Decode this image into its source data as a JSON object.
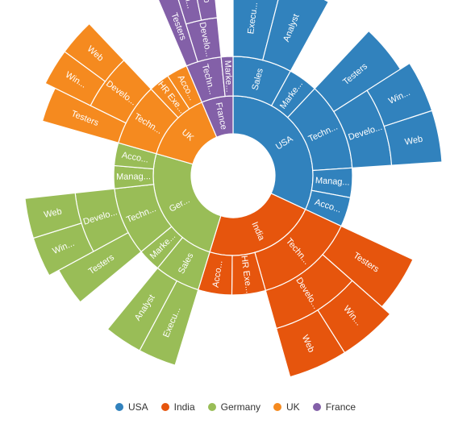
{
  "chart_data": {
    "type": "sunburst",
    "title": "",
    "legend_position": "bottom",
    "legend": [
      {
        "name": "USA",
        "color": "#3182BD"
      },
      {
        "name": "India",
        "color": "#E6550D"
      },
      {
        "name": "Germany",
        "color": "#99BD57"
      },
      {
        "name": "UK",
        "color": "#F58A1F"
      },
      {
        "name": "France",
        "color": "#8360A8"
      }
    ],
    "nodes": [
      {
        "name": "USA",
        "color": "#3182BD",
        "label": "USA",
        "outer_level": 3,
        "children": [
          {
            "name": "Sales",
            "label": "Sales",
            "children": [
              {
                "name": "Executive",
                "label": "Execu..."
              },
              {
                "name": "Analyst",
                "label": "Analyst"
              }
            ]
          },
          {
            "name": "Marketing",
            "label": "Marke..."
          },
          {
            "name": "Technical",
            "label": "Techn...",
            "children": [
              {
                "name": "Testers",
                "label": "Testers"
              },
              {
                "name": "Developers",
                "label": "Develo...",
                "children": [
                  {
                    "name": "Windows",
                    "label": "Win..."
                  },
                  {
                    "name": "Web",
                    "label": "Web"
                  }
                ]
              }
            ]
          },
          {
            "name": "Management",
            "label": "Manag..."
          },
          {
            "name": "Accounts",
            "label": "Acco..."
          }
        ]
      },
      {
        "name": "India",
        "color": "#E6550D",
        "label": "India",
        "outer_level": 3,
        "children": [
          {
            "name": "Technical",
            "label": "Techn...",
            "children": [
              {
                "name": "Testers",
                "label": "Testers"
              },
              {
                "name": "Developers",
                "label": "Develo...",
                "children": [
                  {
                    "name": "Windows",
                    "label": "Win..."
                  },
                  {
                    "name": "Web",
                    "label": "Web"
                  }
                ]
              }
            ]
          },
          {
            "name": "HR Executives",
            "label": "HR Exe..."
          },
          {
            "name": "Accounts",
            "label": "Acco..."
          }
        ]
      },
      {
        "name": "Germany",
        "color": "#99BD57",
        "label": "Ger...",
        "outer_level": 3,
        "children": [
          {
            "name": "Sales",
            "label": "Sales",
            "children": [
              {
                "name": "Executive",
                "label": "Execu..."
              },
              {
                "name": "Analyst",
                "label": "Analyst"
              }
            ]
          },
          {
            "name": "Marketing",
            "label": "Marke..."
          },
          {
            "name": "Technical",
            "label": "Techn...",
            "children": [
              {
                "name": "Testers",
                "label": "Testers"
              },
              {
                "name": "Developers",
                "label": "Develo...",
                "children": [
                  {
                    "name": "Windows",
                    "label": "Win..."
                  },
                  {
                    "name": "Web",
                    "label": "Web"
                  }
                ]
              }
            ]
          },
          {
            "name": "Management",
            "label": "Manag..."
          },
          {
            "name": "Accounts",
            "label": "Acco..."
          }
        ]
      },
      {
        "name": "UK",
        "color": "#F58A1F",
        "label": "UK",
        "outer_level": 3,
        "children": [
          {
            "name": "Technical",
            "label": "Techn...",
            "children": [
              {
                "name": "Testers",
                "label": "Testers"
              },
              {
                "name": "Developers",
                "label": "Develo...",
                "children": [
                  {
                    "name": "Windows",
                    "label": "Win..."
                  },
                  {
                    "name": "Web",
                    "label": "Web"
                  }
                ]
              }
            ]
          },
          {
            "name": "HR Executives",
            "label": "HR Exe..."
          },
          {
            "name": "Accounts",
            "label": "Acco..."
          }
        ]
      },
      {
        "name": "France",
        "color": "#8360A8",
        "label": "France",
        "outer_level": 4,
        "children": [
          {
            "name": "Technical",
            "label": "Techn...",
            "children": [
              {
                "name": "Testers",
                "label": "Testers"
              },
              {
                "name": "Developers",
                "label": "Develo...",
                "children": [
                  {
                    "name": "Windows",
                    "label": "Win..."
                  },
                  {
                    "name": "Web",
                    "label": "Web"
                  }
                ]
              }
            ]
          },
          {
            "name": "Marketing",
            "label": "Marke..."
          }
        ]
      }
    ]
  }
}
